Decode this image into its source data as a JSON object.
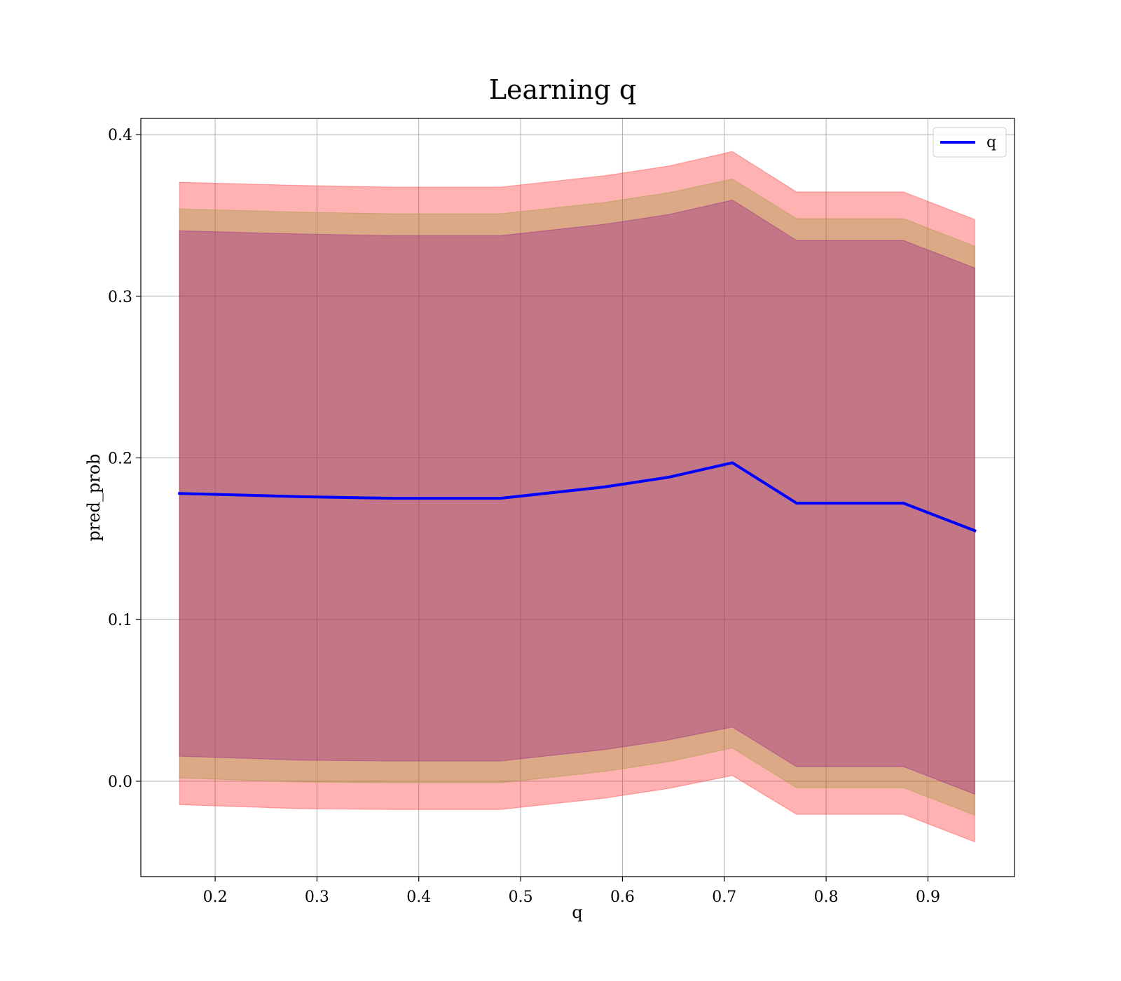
{
  "chart_data": {
    "type": "line",
    "title": "Learning q",
    "xlabel": "q",
    "ylabel": "pred_prob",
    "xlim": [
      0.127,
      0.985
    ],
    "ylim": [
      -0.059,
      0.41
    ],
    "xticks": [
      0.2,
      0.3,
      0.4,
      0.5,
      0.6,
      0.7,
      0.8,
      0.9
    ],
    "yticks": [
      0.0,
      0.1,
      0.2,
      0.3,
      0.4
    ],
    "grid": true,
    "legend_position": "top-right",
    "x": [
      0.165,
      0.285,
      0.375,
      0.48,
      0.582,
      0.645,
      0.708,
      0.771,
      0.876,
      0.946
    ],
    "series": [
      {
        "name": "q",
        "color": "#0000ff",
        "values": [
          0.178,
          0.176,
          0.175,
          0.175,
          0.182,
          0.188,
          0.197,
          0.172,
          0.172,
          0.155
        ]
      }
    ],
    "bands": [
      {
        "color": "#ff0000",
        "opacity": 0.3,
        "lower": [
          -0.0145,
          -0.017,
          -0.0175,
          -0.0175,
          -0.0105,
          -0.0045,
          0.0035,
          -0.0205,
          -0.0205,
          -0.0375
        ],
        "upper": [
          0.3705,
          0.3685,
          0.3675,
          0.3675,
          0.3745,
          0.3805,
          0.3895,
          0.3645,
          0.3645,
          0.3475
        ]
      },
      {
        "color": "#999933",
        "opacity": 0.35,
        "lower": [
          0.002,
          -0.0005,
          -0.001,
          -0.001,
          0.006,
          0.012,
          0.0205,
          -0.004,
          -0.004,
          -0.021
        ],
        "upper": [
          0.354,
          0.352,
          0.351,
          0.351,
          0.358,
          0.364,
          0.3725,
          0.348,
          0.348,
          0.331
        ]
      },
      {
        "color": "#880088",
        "opacity": 0.3,
        "lower": [
          0.0155,
          0.013,
          0.0125,
          0.0125,
          0.0195,
          0.0255,
          0.0335,
          0.009,
          0.009,
          -0.008
        ],
        "upper": [
          0.3405,
          0.3385,
          0.3375,
          0.3375,
          0.3445,
          0.3505,
          0.3595,
          0.3345,
          0.3345,
          0.3175
        ]
      }
    ]
  }
}
